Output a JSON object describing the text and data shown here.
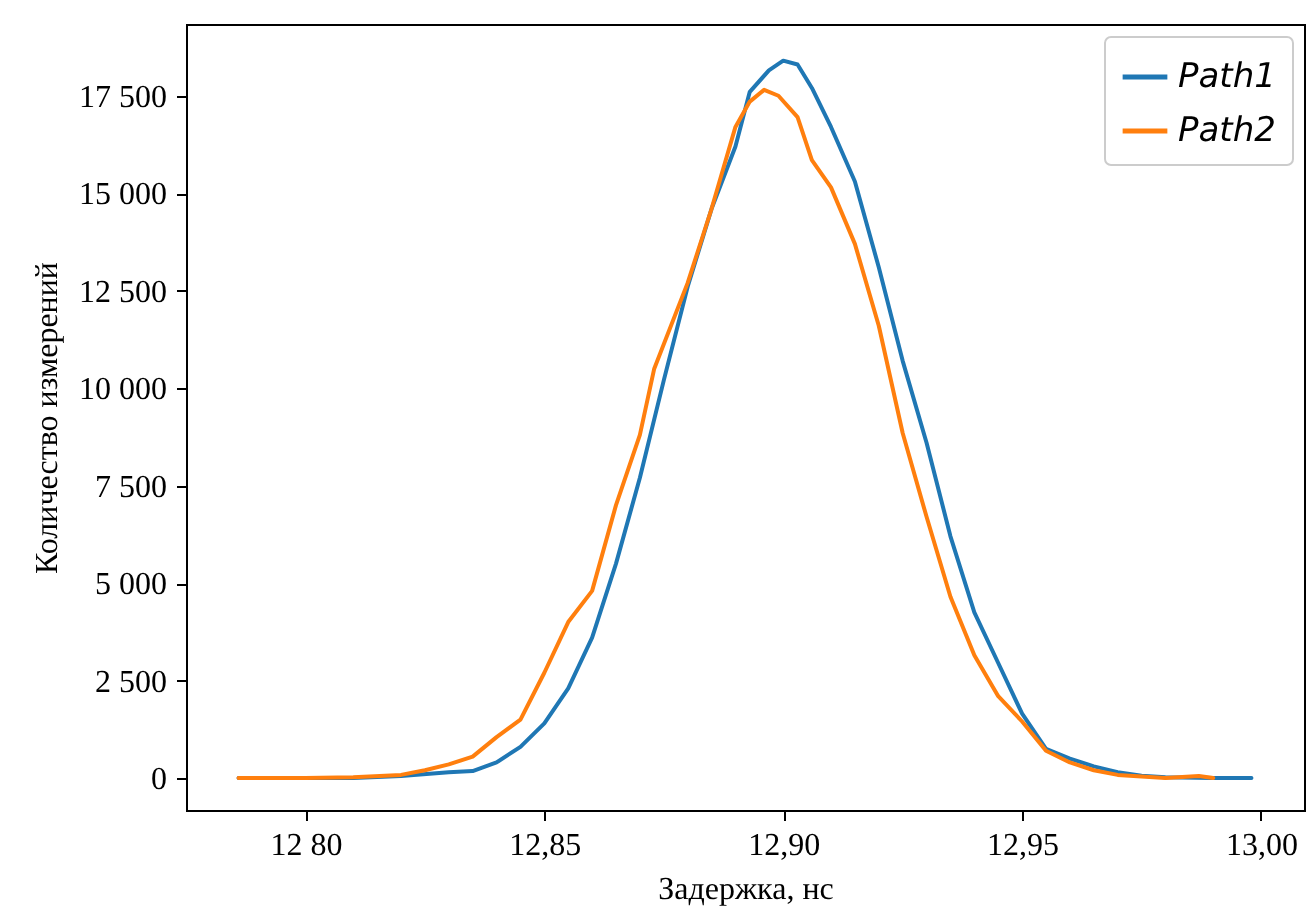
{
  "chart_data": {
    "type": "line",
    "xlabel": "Задержка, нс",
    "ylabel": "Количество измерений",
    "xlim": [
      12.775,
      13.009
    ],
    "ylim": [
      -820,
      19340
    ],
    "xticks": [
      {
        "value": 12.8,
        "label": "12 80"
      },
      {
        "value": 12.85,
        "label": "12,85"
      },
      {
        "value": 12.9,
        "label": "12,90"
      },
      {
        "value": 12.95,
        "label": "12,95"
      },
      {
        "value": 13.0,
        "label": "13,00"
      }
    ],
    "yticks": [
      0,
      {
        "value": 2500,
        "label": "2 500"
      },
      {
        "value": 5000,
        "label": "5 000"
      },
      {
        "value": 7500,
        "label": "7 500"
      },
      {
        "value": 10000,
        "label": "10 000"
      },
      {
        "value": 12500,
        "label": "12 500"
      },
      {
        "value": 15000,
        "label": "15 000"
      },
      {
        "value": 17500,
        "label": "17 500"
      }
    ],
    "grid": false,
    "legend": "top right",
    "line_style": "solid",
    "marker": "none",
    "series": [
      {
        "name": "Path1",
        "color": "#1f77b4",
        "x": [
          12.786,
          12.8,
          12.81,
          12.82,
          12.83,
          12.835,
          12.84,
          12.845,
          12.85,
          12.855,
          12.86,
          12.865,
          12.87,
          12.875,
          12.88,
          12.885,
          12.89,
          12.893,
          12.897,
          12.9,
          12.903,
          12.906,
          12.91,
          12.915,
          12.92,
          12.925,
          12.93,
          12.935,
          12.94,
          12.945,
          12.95,
          12.955,
          12.96,
          12.965,
          12.97,
          12.975,
          12.98,
          12.99,
          12.998
        ],
        "values": [
          0,
          0,
          0,
          50,
          150,
          180,
          400,
          800,
          1400,
          2300,
          3600,
          5500,
          7700,
          10200,
          12600,
          14600,
          16200,
          17600,
          18150,
          18400,
          18300,
          17700,
          16700,
          15300,
          13100,
          10700,
          8600,
          6200,
          4250,
          2950,
          1650,
          750,
          500,
          300,
          150,
          60,
          20,
          0,
          0
        ]
      },
      {
        "name": "Path2",
        "color": "#ff7f0e",
        "x": [
          12.786,
          12.8,
          12.81,
          12.82,
          12.825,
          12.83,
          12.835,
          12.84,
          12.845,
          12.85,
          12.855,
          12.86,
          12.865,
          12.87,
          12.873,
          12.88,
          12.885,
          12.89,
          12.893,
          12.896,
          12.899,
          12.903,
          12.906,
          12.91,
          12.915,
          12.92,
          12.925,
          12.93,
          12.935,
          12.94,
          12.945,
          12.95,
          12.955,
          12.96,
          12.965,
          12.97,
          12.98,
          12.987,
          12.99
        ],
        "values": [
          0,
          0,
          20,
          80,
          200,
          350,
          550,
          1050,
          1500,
          2700,
          4000,
          4800,
          7000,
          8800,
          10500,
          12700,
          14600,
          16700,
          17350,
          17650,
          17500,
          16950,
          15850,
          15150,
          13700,
          11600,
          8850,
          6700,
          4650,
          3150,
          2100,
          1450,
          700,
          400,
          200,
          80,
          0,
          50,
          0
        ]
      }
    ]
  }
}
